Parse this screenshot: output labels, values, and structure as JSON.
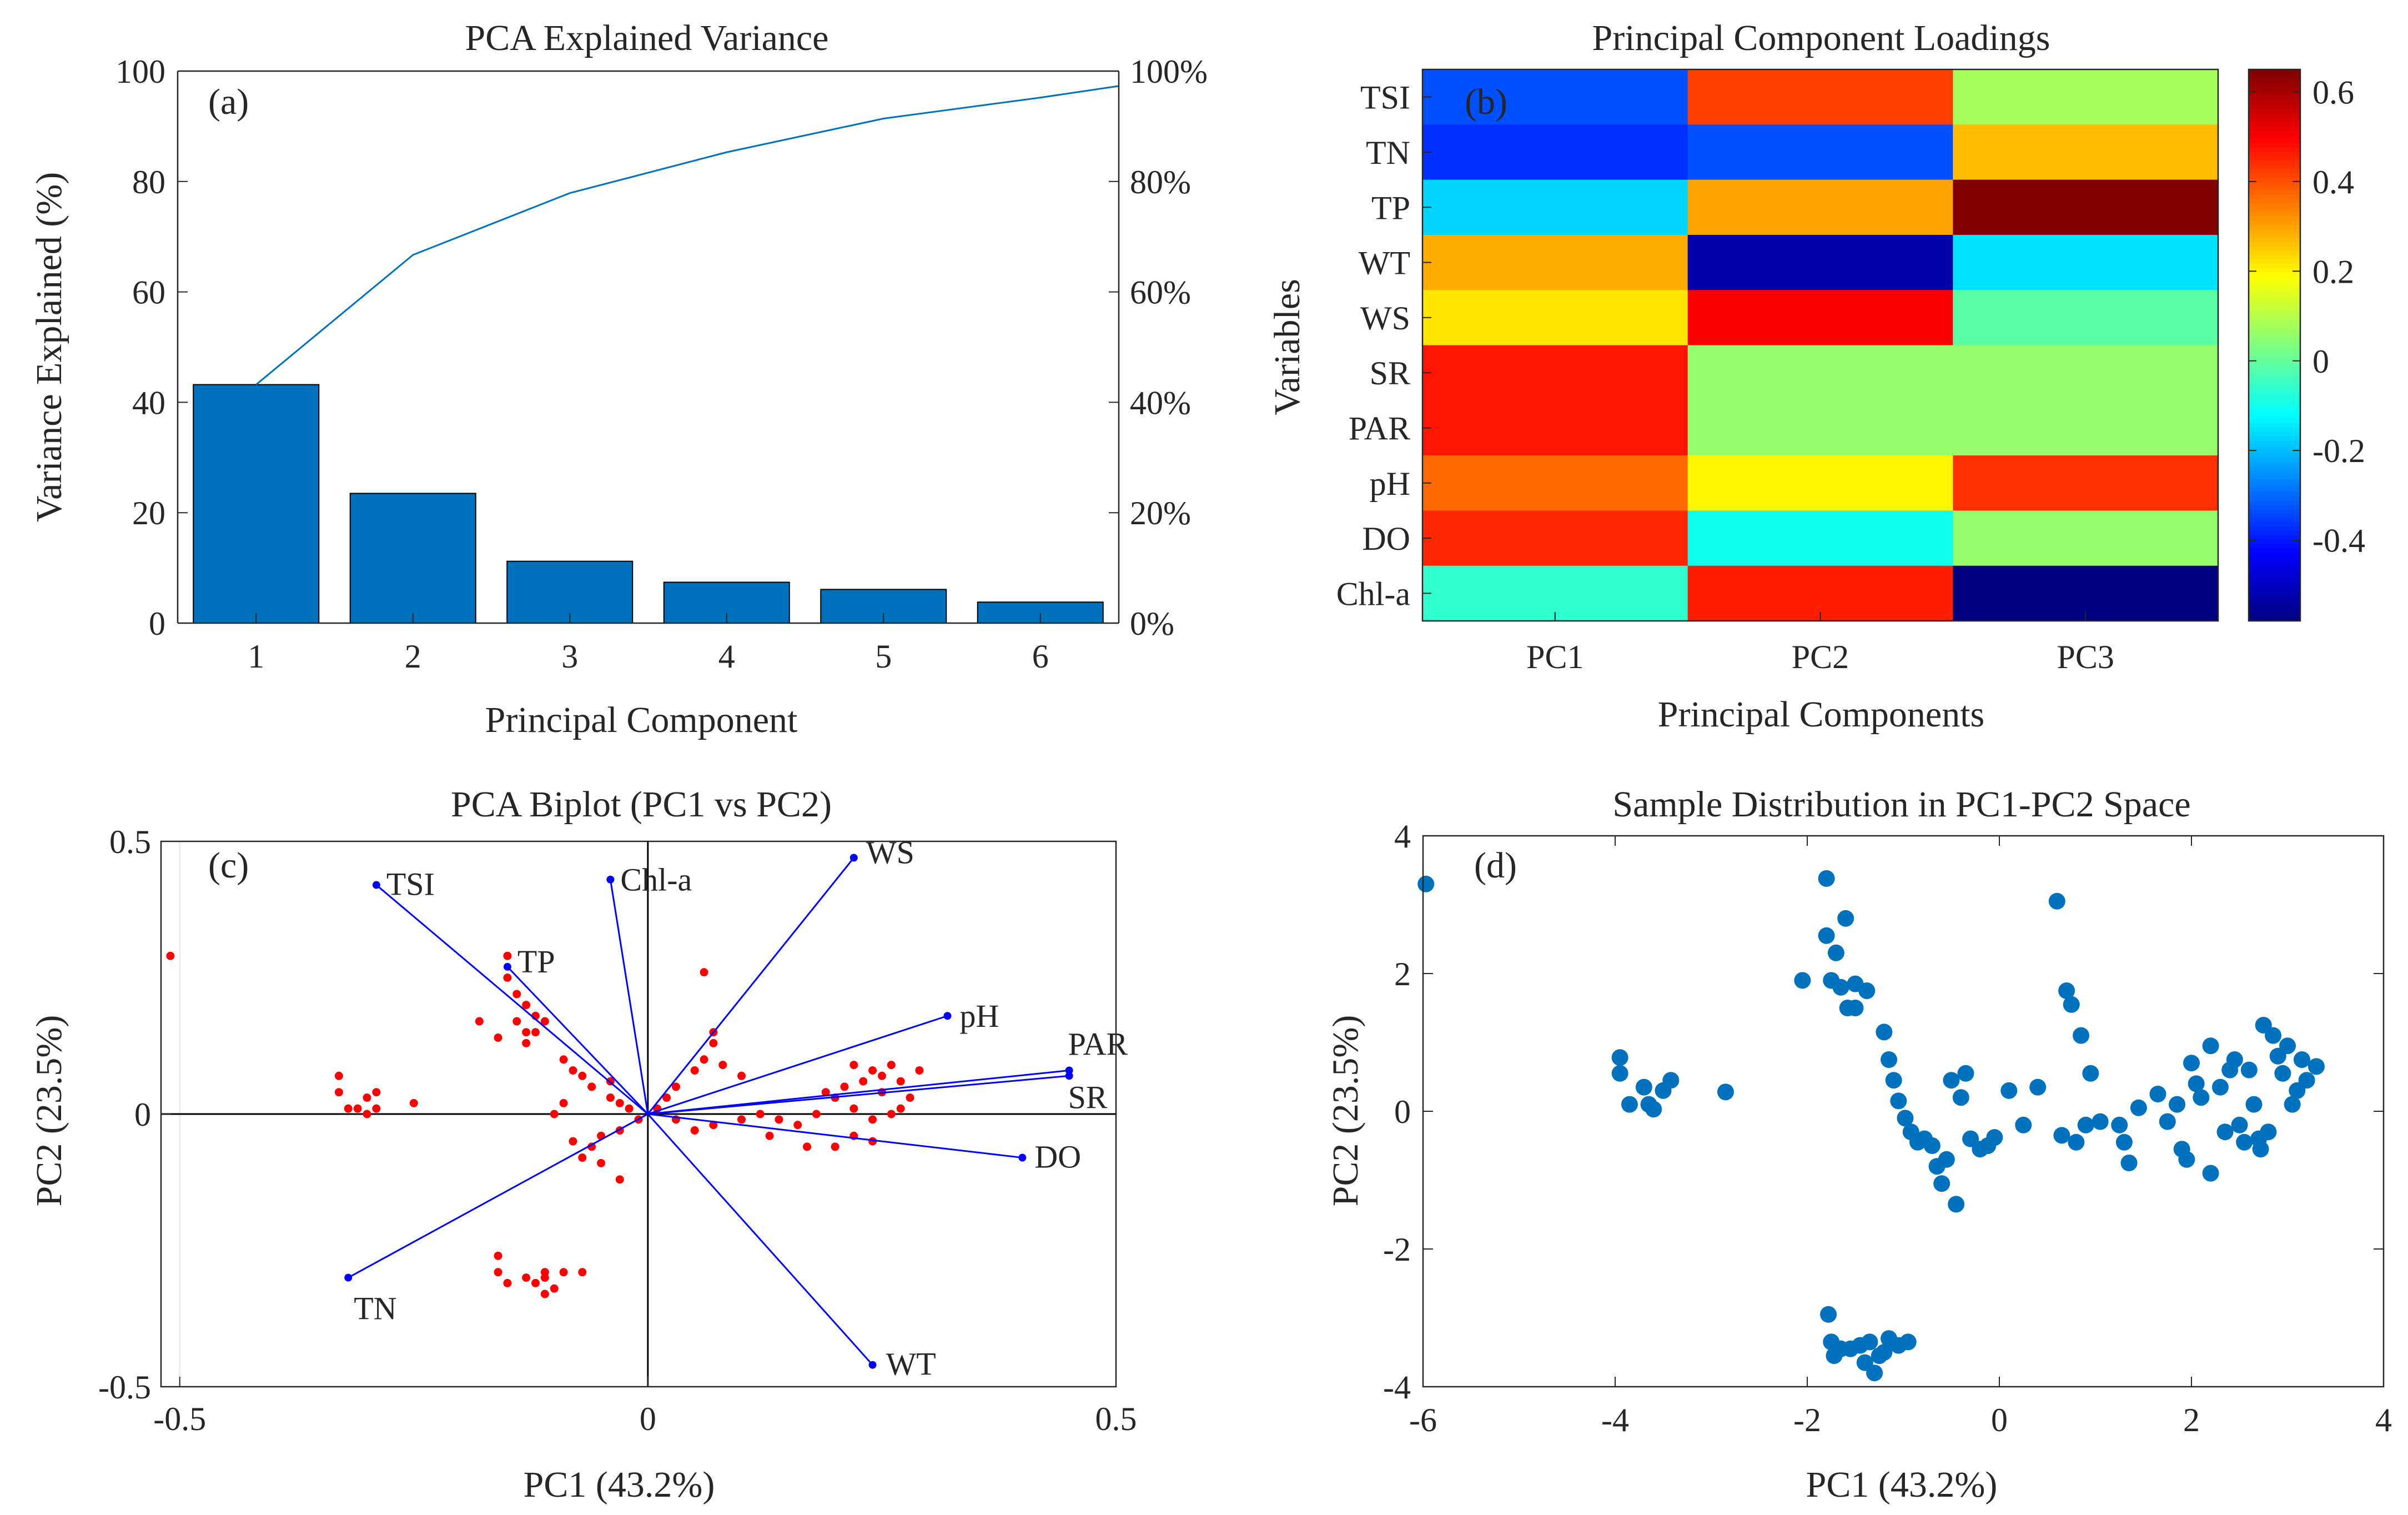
{
  "chart_data": [
    {
      "panel": "a",
      "type": "bar",
      "title": "PCA Explained Variance",
      "panel_label": "(a)",
      "xlabel": "Principal Component",
      "ylabel": "Variance Explained (%)",
      "categories": [
        "1",
        "2",
        "3",
        "4",
        "5",
        "6"
      ],
      "values": [
        43.2,
        23.5,
        11.2,
        7.4,
        6.1,
        3.8
      ],
      "cumulative": [
        43.2,
        66.7,
        77.9,
        85.3,
        91.4,
        95.2,
        97.3
      ],
      "cumulative_x": [
        1,
        2,
        3,
        4,
        5,
        6,
        6.5
      ],
      "ylim": [
        0,
        100
      ],
      "xlim": [
        0.5,
        6.5
      ],
      "yticks": [
        "0",
        "20",
        "40",
        "60",
        "80",
        "100"
      ],
      "right_yticks": [
        "0%",
        "20%",
        "40%",
        "60%",
        "80%",
        "100%"
      ],
      "bar_color": "#0072BD",
      "line_color": "#0072BD"
    },
    {
      "panel": "b",
      "type": "heatmap",
      "title": "Principal Component Loadings",
      "panel_label": "(b)",
      "xlabel": "Principal Components",
      "ylabel": "Variables",
      "rows": [
        "TSI",
        "TN",
        "TP",
        "WT",
        "WS",
        "SR",
        "PAR",
        "pH",
        "DO",
        "Chl-a"
      ],
      "cols": [
        "PC1",
        "PC2",
        "PC3"
      ],
      "values": [
        [
          -0.33,
          0.42,
          0.08
        ],
        [
          -0.37,
          -0.33,
          0.27
        ],
        [
          -0.17,
          0.3,
          0.65
        ],
        [
          0.29,
          -0.53,
          -0.15
        ],
        [
          0.22,
          0.5,
          -0.01
        ],
        [
          0.47,
          0.06,
          0.06
        ],
        [
          0.47,
          0.06,
          0.06
        ],
        [
          0.37,
          0.2,
          0.44
        ],
        [
          0.45,
          -0.1,
          0.06
        ],
        [
          -0.06,
          0.46,
          -0.58
        ]
      ],
      "clim": [
        -0.58,
        0.65
      ],
      "colorbar_ticks": [
        -0.4,
        -0.2,
        0,
        0.2,
        0.4,
        0.6
      ],
      "colorbar_tick_labels": [
        "-0.4",
        "-0.2",
        "0",
        "0.2",
        "0.4",
        "0.6"
      ],
      "colormap": "jet"
    },
    {
      "panel": "c",
      "type": "scatter",
      "title": "PCA Biplot (PC1 vs PC2)",
      "panel_label": "(c)",
      "xlabel": "PC1 (43.2%)",
      "ylabel": "PC2 (23.5%)",
      "xlim": [
        -0.52,
        0.5
      ],
      "ylim": [
        -0.5,
        0.5
      ],
      "xticks": [
        -0.5,
        0,
        0.5
      ],
      "xtick_labels": [
        "-0.5",
        "0",
        "0.5"
      ],
      "yticks": [
        -0.5,
        0,
        0.5
      ],
      "ytick_labels": [
        "-0.5",
        "0",
        "0.5"
      ],
      "vectors": [
        {
          "name": "TSI",
          "x": -0.29,
          "y": 0.42
        },
        {
          "name": "TP",
          "x": -0.15,
          "y": 0.27
        },
        {
          "name": "Chl-a",
          "x": -0.04,
          "y": 0.43
        },
        {
          "name": "WS",
          "x": 0.22,
          "y": 0.47
        },
        {
          "name": "pH",
          "x": 0.32,
          "y": 0.18
        },
        {
          "name": "PAR",
          "x": 0.45,
          "y": 0.08
        },
        {
          "name": "SR",
          "x": 0.45,
          "y": 0.07
        },
        {
          "name": "DO",
          "x": 0.4,
          "y": -0.08
        },
        {
          "name": "WT",
          "x": 0.24,
          "y": -0.46
        },
        {
          "name": "TN",
          "x": -0.32,
          "y": -0.3
        }
      ],
      "vector_color": "#0000FF",
      "point_color": "#FF0000",
      "points": [
        [
          -0.51,
          0.29
        ],
        [
          -0.33,
          0.07
        ],
        [
          -0.33,
          0.04
        ],
        [
          -0.32,
          0.01
        ],
        [
          -0.31,
          0.01
        ],
        [
          -0.3,
          0.03
        ],
        [
          -0.29,
          0.04
        ],
        [
          -0.29,
          0.01
        ],
        [
          -0.3,
          0.0
        ],
        [
          -0.25,
          0.02
        ],
        [
          -0.15,
          0.29
        ],
        [
          -0.15,
          0.25
        ],
        [
          -0.14,
          0.22
        ],
        [
          -0.13,
          0.2
        ],
        [
          -0.12,
          0.18
        ],
        [
          -0.11,
          0.17
        ],
        [
          -0.12,
          0.15
        ],
        [
          -0.13,
          0.15
        ],
        [
          -0.14,
          0.17
        ],
        [
          -0.18,
          0.17
        ],
        [
          -0.16,
          0.14
        ],
        [
          -0.13,
          0.13
        ],
        [
          -0.09,
          0.1
        ],
        [
          -0.08,
          0.08
        ],
        [
          -0.07,
          0.07
        ],
        [
          -0.06,
          0.05
        ],
        [
          -0.04,
          0.03
        ],
        [
          -0.03,
          0.02
        ],
        [
          -0.02,
          0.01
        ],
        [
          -0.01,
          -0.01
        ],
        [
          -0.03,
          -0.03
        ],
        [
          -0.05,
          -0.04
        ],
        [
          -0.06,
          -0.06
        ],
        [
          -0.08,
          -0.05
        ],
        [
          -0.07,
          -0.08
        ],
        [
          -0.05,
          -0.09
        ],
        [
          -0.03,
          -0.12
        ],
        [
          -0.09,
          0.02
        ],
        [
          -0.1,
          0.0
        ],
        [
          -0.04,
          0.06
        ],
        [
          0.01,
          0.01
        ],
        [
          0.02,
          0.03
        ],
        [
          0.03,
          0.05
        ],
        [
          0.05,
          0.08
        ],
        [
          0.06,
          0.1
        ],
        [
          0.07,
          0.13
        ],
        [
          0.07,
          0.15
        ],
        [
          0.06,
          0.26
        ],
        [
          0.08,
          0.09
        ],
        [
          0.1,
          0.07
        ],
        [
          0.03,
          -0.01
        ],
        [
          0.05,
          -0.03
        ],
        [
          0.07,
          -0.02
        ],
        [
          0.1,
          -0.01
        ],
        [
          0.12,
          0.0
        ],
        [
          0.14,
          -0.01
        ],
        [
          0.16,
          -0.02
        ],
        [
          0.13,
          -0.04
        ],
        [
          0.18,
          0.0
        ],
        [
          0.19,
          0.04
        ],
        [
          0.21,
          0.05
        ],
        [
          0.23,
          0.06
        ],
        [
          0.24,
          0.08
        ],
        [
          0.25,
          0.07
        ],
        [
          0.26,
          0.09
        ],
        [
          0.27,
          0.06
        ],
        [
          0.25,
          0.04
        ],
        [
          0.28,
          0.03
        ],
        [
          0.27,
          0.01
        ],
        [
          0.2,
          0.03
        ],
        [
          0.22,
          0.01
        ],
        [
          0.24,
          -0.01
        ],
        [
          0.22,
          -0.04
        ],
        [
          0.24,
          -0.05
        ],
        [
          0.2,
          -0.06
        ],
        [
          0.17,
          -0.06
        ],
        [
          0.26,
          0.0
        ],
        [
          0.29,
          0.08
        ],
        [
          0.22,
          0.09
        ],
        [
          -0.16,
          -0.26
        ],
        [
          -0.16,
          -0.29
        ],
        [
          -0.15,
          -0.31
        ],
        [
          -0.13,
          -0.3
        ],
        [
          -0.12,
          -0.31
        ],
        [
          -0.11,
          -0.3
        ],
        [
          -0.11,
          -0.33
        ],
        [
          -0.1,
          -0.32
        ],
        [
          -0.09,
          -0.29
        ],
        [
          -0.07,
          -0.29
        ],
        [
          -0.11,
          -0.29
        ]
      ]
    },
    {
      "panel": "d",
      "type": "scatter",
      "title": "Sample Distribution in PC1-PC2 Space",
      "panel_label": "(d)",
      "xlabel": "PC1 (43.2%)",
      "ylabel": "PC2 (23.5%)",
      "xlim": [
        -6,
        4
      ],
      "ylim": [
        -4,
        4
      ],
      "xticks": [
        -6,
        -4,
        -2,
        0,
        2,
        4
      ],
      "xtick_labels": [
        "-6",
        "-4",
        "-2",
        "0",
        "2",
        "4"
      ],
      "yticks": [
        -4,
        -2,
        0,
        2,
        4
      ],
      "ytick_labels": [
        "-4",
        "-2",
        "0",
        "2",
        "4"
      ],
      "point_color": "#0072BD",
      "points": [
        [
          -5.97,
          3.3
        ],
        [
          -3.95,
          0.78
        ],
        [
          -3.95,
          0.55
        ],
        [
          -3.85,
          0.1
        ],
        [
          -3.7,
          0.35
        ],
        [
          -3.65,
          0.1
        ],
        [
          -3.6,
          0.03
        ],
        [
          -3.5,
          0.3
        ],
        [
          -3.42,
          0.45
        ],
        [
          -2.85,
          0.28
        ],
        [
          -2.05,
          1.9
        ],
        [
          -1.8,
          3.38
        ],
        [
          -1.8,
          2.55
        ],
        [
          -1.75,
          1.9
        ],
        [
          -1.7,
          2.3
        ],
        [
          -1.65,
          1.8
        ],
        [
          -1.6,
          2.8
        ],
        [
          -1.58,
          1.5
        ],
        [
          -1.5,
          1.85
        ],
        [
          -1.5,
          1.5
        ],
        [
          -1.38,
          1.75
        ],
        [
          -1.2,
          1.15
        ],
        [
          -1.15,
          0.75
        ],
        [
          -1.1,
          0.45
        ],
        [
          -1.05,
          0.15
        ],
        [
          -0.98,
          -0.1
        ],
        [
          -0.92,
          -0.3
        ],
        [
          -0.85,
          -0.45
        ],
        [
          -0.78,
          -0.4
        ],
        [
          -0.7,
          -0.5
        ],
        [
          -0.65,
          -0.8
        ],
        [
          -0.6,
          -1.05
        ],
        [
          -0.55,
          -0.7
        ],
        [
          -0.5,
          0.45
        ],
        [
          -0.45,
          -1.35
        ],
        [
          -0.4,
          0.2
        ],
        [
          -0.35,
          0.55
        ],
        [
          -0.3,
          -0.4
        ],
        [
          -0.2,
          -0.55
        ],
        [
          -0.12,
          -0.5
        ],
        [
          -0.05,
          -0.38
        ],
        [
          0.1,
          0.3
        ],
        [
          0.25,
          -0.2
        ],
        [
          0.4,
          0.35
        ],
        [
          0.6,
          3.05
        ],
        [
          0.65,
          -0.35
        ],
        [
          0.7,
          1.75
        ],
        [
          0.75,
          1.55
        ],
        [
          0.8,
          -0.45
        ],
        [
          0.85,
          1.1
        ],
        [
          0.9,
          -0.2
        ],
        [
          0.95,
          0.55
        ],
        [
          1.05,
          -0.15
        ],
        [
          1.25,
          -0.2
        ],
        [
          1.3,
          -0.45
        ],
        [
          1.35,
          -0.75
        ],
        [
          1.45,
          0.05
        ],
        [
          1.65,
          0.25
        ],
        [
          1.75,
          -0.15
        ],
        [
          1.85,
          0.1
        ],
        [
          1.9,
          -0.55
        ],
        [
          1.95,
          -0.7
        ],
        [
          2.0,
          0.7
        ],
        [
          2.05,
          0.4
        ],
        [
          2.1,
          0.2
        ],
        [
          2.2,
          0.95
        ],
        [
          2.2,
          -0.9
        ],
        [
          2.3,
          0.35
        ],
        [
          2.35,
          -0.3
        ],
        [
          2.4,
          0.6
        ],
        [
          2.45,
          0.75
        ],
        [
          2.5,
          -0.2
        ],
        [
          2.55,
          -0.45
        ],
        [
          2.6,
          0.6
        ],
        [
          2.65,
          0.1
        ],
        [
          2.7,
          -0.4
        ],
        [
          2.72,
          -0.55
        ],
        [
          2.75,
          1.25
        ],
        [
          2.8,
          -0.3
        ],
        [
          2.85,
          1.1
        ],
        [
          2.9,
          0.8
        ],
        [
          2.95,
          0.55
        ],
        [
          3.0,
          0.95
        ],
        [
          3.05,
          0.1
        ],
        [
          3.1,
          0.3
        ],
        [
          3.15,
          0.75
        ],
        [
          3.2,
          0.45
        ],
        [
          3.3,
          0.65
        ],
        [
          -1.78,
          -2.95
        ],
        [
          -1.75,
          -3.35
        ],
        [
          -1.72,
          -3.55
        ],
        [
          -1.65,
          -3.45
        ],
        [
          -1.55,
          -3.45
        ],
        [
          -1.45,
          -3.4
        ],
        [
          -1.4,
          -3.65
        ],
        [
          -1.35,
          -3.35
        ],
        [
          -1.3,
          -3.8
        ],
        [
          -1.25,
          -3.55
        ],
        [
          -1.2,
          -3.5
        ],
        [
          -1.15,
          -3.3
        ],
        [
          -1.05,
          -3.4
        ],
        [
          -0.95,
          -3.35
        ]
      ]
    }
  ]
}
